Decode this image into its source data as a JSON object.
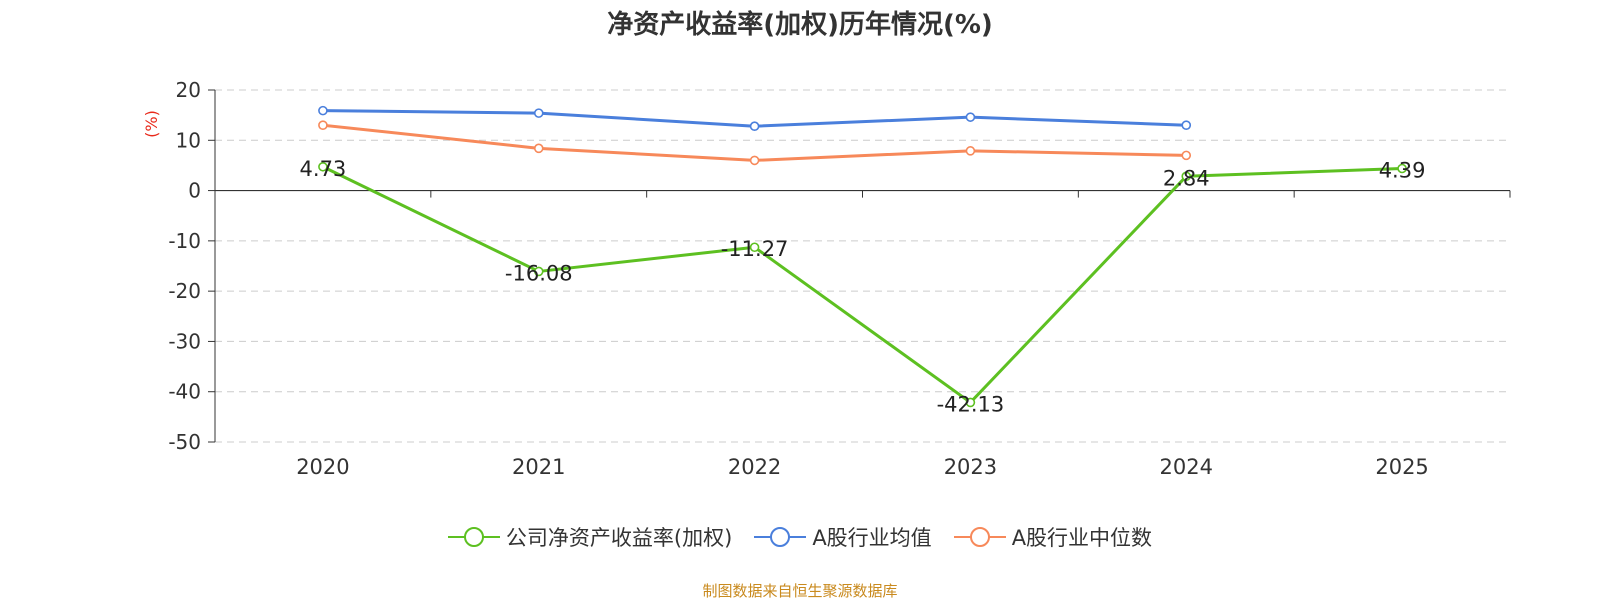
{
  "chart_data": {
    "type": "line",
    "title": "净资产收益率(加权)历年情况(%)",
    "ylabel": "(%)",
    "xlabel": "",
    "categories": [
      "2020",
      "2021",
      "2022",
      "2023",
      "2024",
      "2025"
    ],
    "ylim": [
      -50,
      20
    ],
    "yticks": [
      20,
      10,
      0,
      -10,
      -20,
      -30,
      -40,
      -50
    ],
    "grid": true,
    "legend_position": "bottom",
    "series": [
      {
        "name": "公司净资产收益率(加权)",
        "color": "#5dc021",
        "values": [
          4.73,
          -16.08,
          -11.27,
          -42.13,
          2.84,
          4.39
        ],
        "show_labels": true
      },
      {
        "name": "A股行业均值",
        "color": "#4a7fdc",
        "values": [
          15.9,
          15.4,
          12.8,
          14.6,
          13.0,
          null
        ],
        "show_labels": false
      },
      {
        "name": "A股行业中位数",
        "color": "#f7895a",
        "values": [
          13.0,
          8.4,
          6.0,
          7.9,
          7.0,
          null
        ],
        "show_labels": false
      }
    ]
  },
  "footer": {
    "source": "制图数据来自恒生聚源数据库"
  }
}
